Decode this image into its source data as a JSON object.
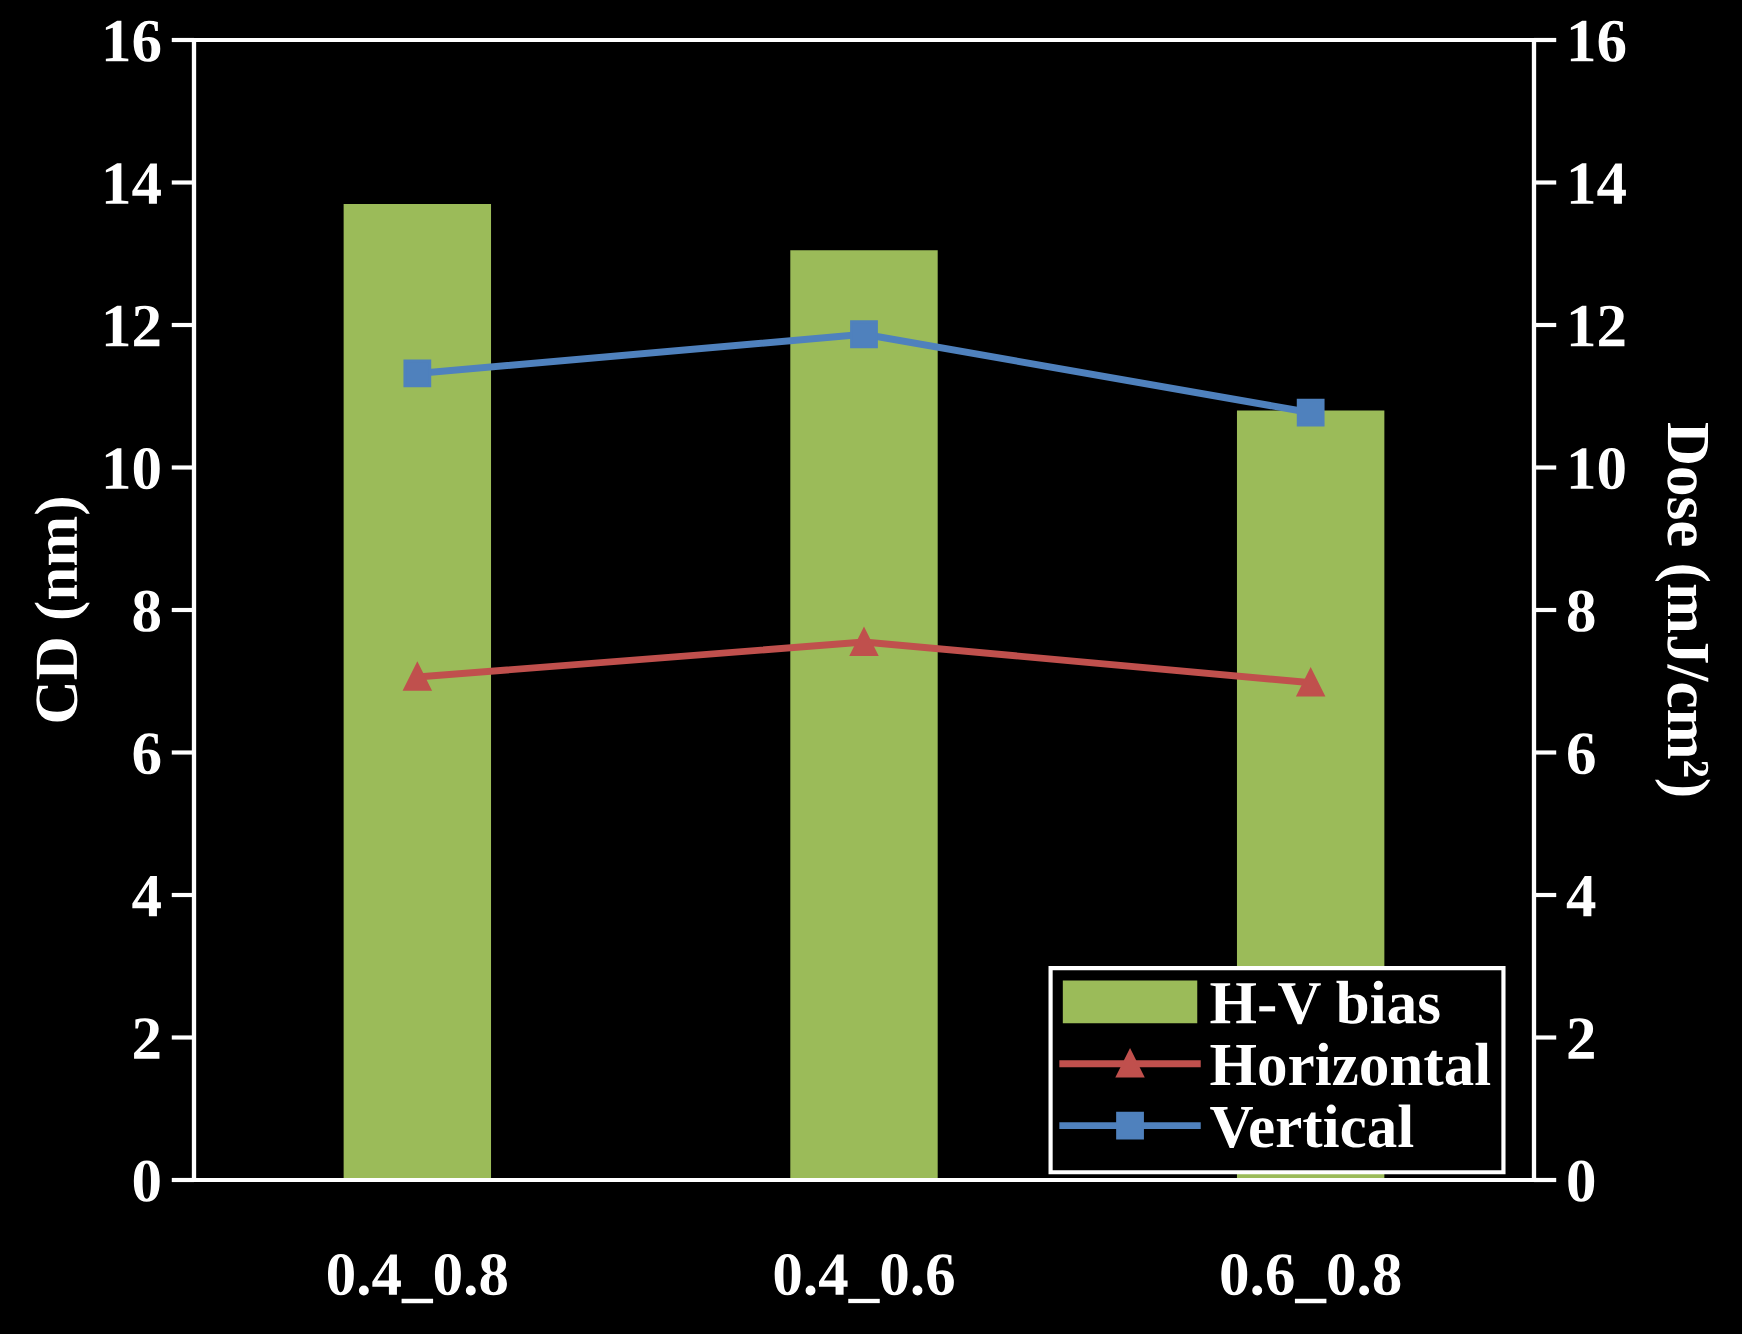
{
  "chart_data": {
    "type": "bar",
    "xlabel": null,
    "ylabel": "CD (nm)",
    "y2label": "Dose (mJ/cm²)",
    "categories": [
      "0.4_0.8",
      "0.4_0.6",
      "0.6_0.8"
    ],
    "series": [
      {
        "name": "H-V bias",
        "color": "#9bbb59",
        "values": [
          13.7,
          13.05,
          10.8
        ]
      },
      {
        "name": "Horizontal",
        "type": "line",
        "color": "#c0504d",
        "marker": "triangle",
        "values": [
          7.06,
          7.55,
          6.98
        ]
      },
      {
        "name": "Vertical",
        "type": "line",
        "color": "#4f81bd",
        "marker": "square",
        "values": [
          11.32,
          11.87,
          10.77
        ]
      }
    ],
    "ylim": [
      0,
      16
    ],
    "yticks": [
      0,
      2,
      4,
      6,
      8,
      10,
      12,
      14,
      16
    ],
    "y2lim": [
      0,
      16
    ],
    "y2ticks": [
      0,
      2,
      4,
      6,
      8,
      10,
      12,
      14,
      16
    ],
    "grid": false,
    "legend": "bottom right",
    "line_style": "solid"
  }
}
